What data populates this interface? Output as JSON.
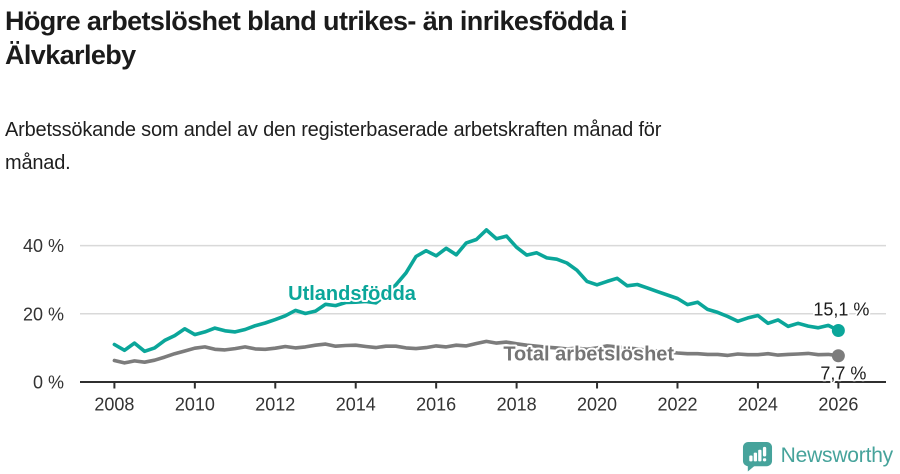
{
  "header": {
    "title_lines": [
      "Högre arbetslöshet bland utrikes- än inrikesfödda i",
      "Älvkarleby"
    ],
    "subtitle_lines": [
      "Arbetssökande som andel av den registerbaserade arbetskraften månad för",
      "månad."
    ]
  },
  "chart_data": {
    "type": "line",
    "title": "Högre arbetslöshet bland utrikes- än inrikesfödda i Älvkarleby",
    "subtitle": "Arbetssökande som andel av den registerbaserade arbetskraften månad för månad.",
    "y_unit": "percent",
    "xlim": [
      2008,
      2026
    ],
    "ylim": [
      0,
      50
    ],
    "grid": "horizontal",
    "legend_position": "inline-labels",
    "x_ticks": [
      2008,
      2010,
      2012,
      2014,
      2016,
      2018,
      2020,
      2022,
      2024,
      2026
    ],
    "y_ticks": [
      {
        "value": 0,
        "label": "0 %"
      },
      {
        "value": 20,
        "label": "20 %"
      },
      {
        "value": 40,
        "label": "40 %"
      }
    ],
    "x": [
      2008,
      2008.25,
      2008.5,
      2008.75,
      2009,
      2009.25,
      2009.5,
      2009.75,
      2010,
      2010.25,
      2010.5,
      2010.75,
      2011,
      2011.25,
      2011.5,
      2011.75,
      2012,
      2012.25,
      2012.5,
      2012.75,
      2013,
      2013.25,
      2013.5,
      2013.75,
      2014,
      2014.25,
      2014.5,
      2014.75,
      2015,
      2015.25,
      2015.5,
      2015.75,
      2016,
      2016.25,
      2016.5,
      2016.75,
      2017,
      2017.25,
      2017.5,
      2017.75,
      2018,
      2018.25,
      2018.5,
      2018.75,
      2019,
      2019.25,
      2019.5,
      2019.75,
      2020,
      2020.25,
      2020.5,
      2020.75,
      2021,
      2021.25,
      2021.5,
      2021.75,
      2022,
      2022.25,
      2022.5,
      2022.75,
      2023,
      2023.25,
      2023.5,
      2023.75,
      2024,
      2024.25,
      2024.5,
      2024.75,
      2025,
      2025.25,
      2025.5,
      2025.75,
      2026
    ],
    "series": [
      {
        "name": "Utlandsfödda",
        "color": "#0ba69a",
        "end_label": "15,1 %",
        "end_value": 15.1,
        "end_label_offset": {
          "dx": 3,
          "dy": -15
        },
        "values": [
          11.0,
          9.3,
          11.4,
          9.0,
          10.0,
          12.2,
          13.6,
          15.6,
          13.9,
          14.7,
          15.8,
          15.0,
          14.7,
          15.4,
          16.5,
          17.3,
          18.3,
          19.4,
          21.0,
          20.1,
          20.8,
          22.8,
          22.4,
          23.3,
          23.4,
          23.6,
          23.2,
          25.5,
          28.5,
          32.0,
          36.8,
          38.5,
          37.0,
          39.2,
          37.3,
          40.8,
          41.8,
          44.6,
          42.0,
          42.8,
          39.5,
          37.2,
          37.9,
          36.4,
          36.0,
          34.9,
          32.8,
          29.5,
          28.5,
          29.5,
          30.4,
          28.2,
          28.6,
          27.6,
          26.5,
          25.5,
          24.5,
          22.7,
          23.4,
          21.3,
          20.4,
          19.2,
          17.8,
          18.8,
          19.5,
          17.2,
          18.2,
          16.3,
          17.2,
          16.4,
          15.9,
          16.6,
          15.1
        ]
      },
      {
        "name": "Total arbetslöshet",
        "color": "#7c7c7c",
        "end_label": "7,7 %",
        "end_value": 7.7,
        "end_label_offset": {
          "dx": 5,
          "dy": 24
        },
        "values": [
          6.3,
          5.6,
          6.2,
          5.8,
          6.4,
          7.3,
          8.3,
          9.1,
          9.9,
          10.3,
          9.6,
          9.4,
          9.8,
          10.3,
          9.7,
          9.6,
          9.9,
          10.4,
          10.0,
          10.3,
          10.8,
          11.1,
          10.5,
          10.7,
          10.8,
          10.4,
          10.1,
          10.5,
          10.5,
          10.0,
          9.8,
          10.1,
          10.6,
          10.3,
          10.8,
          10.6,
          11.3,
          11.9,
          11.4,
          11.7,
          11.2,
          10.8,
          10.5,
          10.2,
          10.0,
          9.7,
          9.9,
          9.6,
          10.0,
          10.6,
          10.3,
          10.0,
          9.7,
          9.3,
          9.1,
          8.8,
          8.5,
          8.3,
          8.3,
          8.1,
          8.1,
          7.8,
          8.2,
          8.0,
          8.0,
          8.3,
          7.9,
          8.1,
          8.2,
          8.4,
          8.0,
          8.1,
          7.7
        ]
      }
    ],
    "series_labels": [
      {
        "text": "Utlandsfödda",
        "x": 2012.32,
        "y": 24.0,
        "color": "#0ba69a"
      },
      {
        "text": "Total arbetslöshet",
        "x": 2017.67,
        "y": 6.3,
        "color": "#757575"
      }
    ],
    "colors": {
      "grid": "#d9d9d9",
      "axis": "#2f2f2f",
      "tick_label": "#333333",
      "annotation": "#1c1c1c"
    }
  },
  "footer": {
    "brand": "Newsworthy",
    "brand_color": "#46a39b",
    "icon": "newsworthy-bubble-chart-icon"
  }
}
